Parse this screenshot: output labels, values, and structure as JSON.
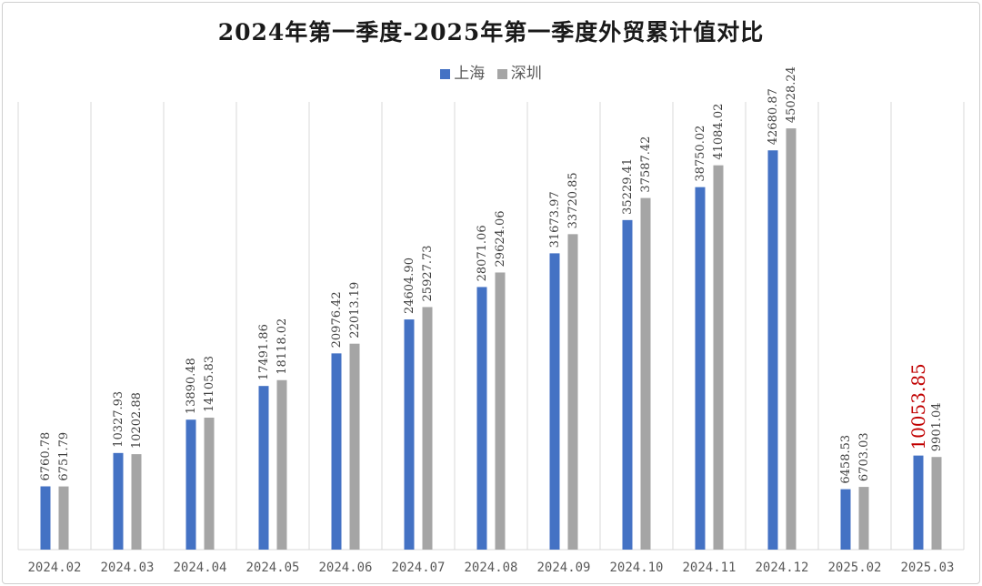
{
  "chart_data": {
    "type": "bar",
    "title": "2024年第一季度-2025年第一季度外贸累计值对比",
    "categories": [
      "2024.02",
      "2024.03",
      "2024.04",
      "2024.05",
      "2024.06",
      "2024.07",
      "2024.08",
      "2024.09",
      "2024.10",
      "2024.11",
      "2024.12",
      "2025.02",
      "2025.03"
    ],
    "series": [
      {
        "name": "上海",
        "color": "#4472C4",
        "values": [
          6760.78,
          10327.93,
          13890.48,
          17491.86,
          20976.42,
          24604.9,
          28071.06,
          31673.97,
          35229.41,
          38750.02,
          42680.87,
          6458.53,
          10053.85
        ],
        "labels": [
          "6760.78",
          "10327.93",
          "13890.48",
          "17491.86",
          "20976.42",
          "24604.90",
          "28071.06",
          "31673.97",
          "35229.41",
          "38750.02",
          "42680.87",
          "6458.53",
          "10053.85"
        ]
      },
      {
        "name": "深圳",
        "color": "#A5A5A5",
        "values": [
          6751.79,
          10202.88,
          14105.83,
          18118.02,
          22013.19,
          25927.73,
          29624.06,
          33720.85,
          37587.42,
          41084.02,
          45028.24,
          6703.03,
          9901.04
        ],
        "labels": [
          "6751.79",
          "10202.88",
          "14105.83",
          "18118.02",
          "22013.19",
          "25927.73",
          "29624.06",
          "33720.85",
          "37587.42",
          "41084.02",
          "45028.24",
          "6703.03",
          "9901.04"
        ]
      }
    ],
    "highlight": {
      "series": 0,
      "index": 12,
      "color": "#C00000"
    },
    "ylim": [
      0,
      50000
    ],
    "grid": "vertical-category-dividers",
    "legend": "top-center"
  }
}
